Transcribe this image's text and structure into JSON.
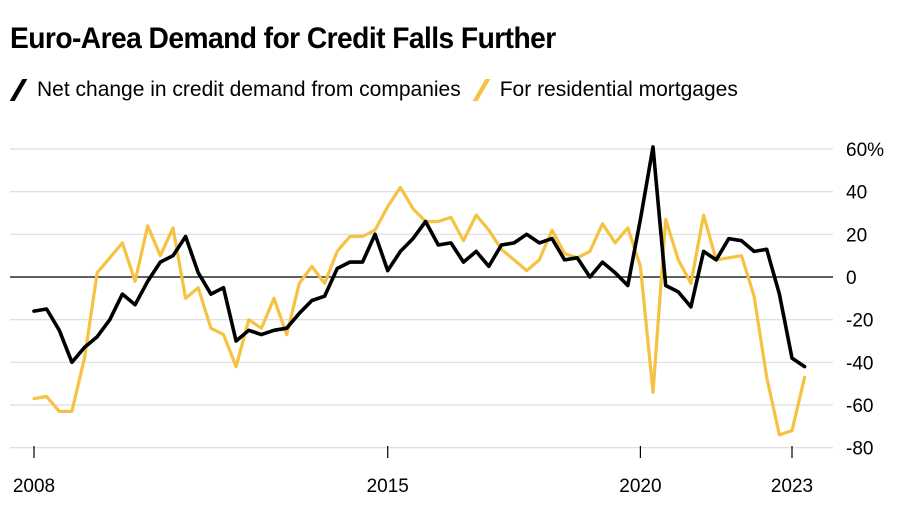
{
  "chart_data": {
    "type": "line",
    "title": "Euro-Area Demand for Credit Falls Further",
    "xlabel": "",
    "ylabel": "",
    "x_ticks": [
      "2008",
      "2015",
      "2020",
      "2023"
    ],
    "y_ticks": [
      "60%",
      "40",
      "20",
      "0",
      "-20",
      "-40",
      "-60",
      "-80"
    ],
    "y_tick_values": [
      60,
      40,
      20,
      0,
      -20,
      -40,
      -60,
      -80
    ],
    "ylim": [
      -80,
      62
    ],
    "xlim": [
      2007.75,
      2023.75
    ],
    "grid": true,
    "legend_position": "top-left",
    "series": [
      {
        "name": "Net change in credit demand from companies",
        "color": "#000000",
        "x": [
          2008.0,
          2008.25,
          2008.5,
          2008.75,
          2009.0,
          2009.25,
          2009.5,
          2009.75,
          2010.0,
          2010.25,
          2010.5,
          2010.75,
          2011.0,
          2011.25,
          2011.5,
          2011.75,
          2012.0,
          2012.25,
          2012.5,
          2012.75,
          2013.0,
          2013.25,
          2013.5,
          2013.75,
          2014.0,
          2014.25,
          2014.5,
          2014.75,
          2015.0,
          2015.25,
          2015.5,
          2015.75,
          2016.0,
          2016.25,
          2016.5,
          2016.75,
          2017.0,
          2017.25,
          2017.5,
          2017.75,
          2018.0,
          2018.25,
          2018.5,
          2018.75,
          2019.0,
          2019.25,
          2019.5,
          2019.75,
          2020.0,
          2020.25,
          2020.5,
          2020.75,
          2021.0,
          2021.25,
          2021.5,
          2021.75,
          2022.0,
          2022.25,
          2022.5,
          2022.75,
          2023.0,
          2023.25
        ],
        "values": [
          -16,
          -15,
          -25,
          -40,
          -33,
          -28,
          -20,
          -8,
          -13,
          -2,
          7,
          10,
          19,
          2,
          -8,
          -5,
          -30,
          -25,
          -27,
          -25,
          -24,
          -17,
          -11,
          -9,
          4,
          7,
          7,
          20,
          3,
          12,
          18,
          26,
          15,
          16,
          7,
          12,
          5,
          15,
          16,
          20,
          16,
          18,
          8,
          9,
          0,
          7,
          2,
          -4,
          27,
          61,
          -4,
          -7,
          -14,
          12,
          8,
          18,
          17,
          12,
          13,
          -8,
          -38,
          -42
        ]
      },
      {
        "name": "For residential mortgages",
        "color": "#f5c242",
        "x": [
          2008.0,
          2008.25,
          2008.5,
          2008.75,
          2009.0,
          2009.25,
          2009.5,
          2009.75,
          2010.0,
          2010.25,
          2010.5,
          2010.75,
          2011.0,
          2011.25,
          2011.5,
          2011.75,
          2012.0,
          2012.25,
          2012.5,
          2012.75,
          2013.0,
          2013.25,
          2013.5,
          2013.75,
          2014.0,
          2014.25,
          2014.5,
          2014.75,
          2015.0,
          2015.25,
          2015.5,
          2015.75,
          2016.0,
          2016.25,
          2016.5,
          2016.75,
          2017.0,
          2017.25,
          2017.5,
          2017.75,
          2018.0,
          2018.25,
          2018.5,
          2018.75,
          2019.0,
          2019.25,
          2019.5,
          2019.75,
          2020.0,
          2020.25,
          2020.5,
          2020.75,
          2021.0,
          2021.25,
          2021.5,
          2021.75,
          2022.0,
          2022.25,
          2022.5,
          2022.75,
          2023.0,
          2023.25
        ],
        "values": [
          -57,
          -56,
          -63,
          -63,
          -38,
          2,
          9,
          16,
          -2,
          24,
          10,
          23,
          -10,
          -5,
          -24,
          -27,
          -42,
          -20,
          -24,
          -10,
          -27,
          -3,
          5,
          -3,
          12,
          19,
          19,
          22,
          33,
          42,
          32,
          26,
          26,
          28,
          17,
          29,
          22,
          13,
          8,
          3,
          8,
          22,
          11,
          9,
          12,
          25,
          16,
          23,
          5,
          -54,
          27,
          8,
          -3,
          29,
          8,
          9,
          10,
          -9,
          -47,
          -74,
          -72,
          -47
        ]
      }
    ]
  }
}
